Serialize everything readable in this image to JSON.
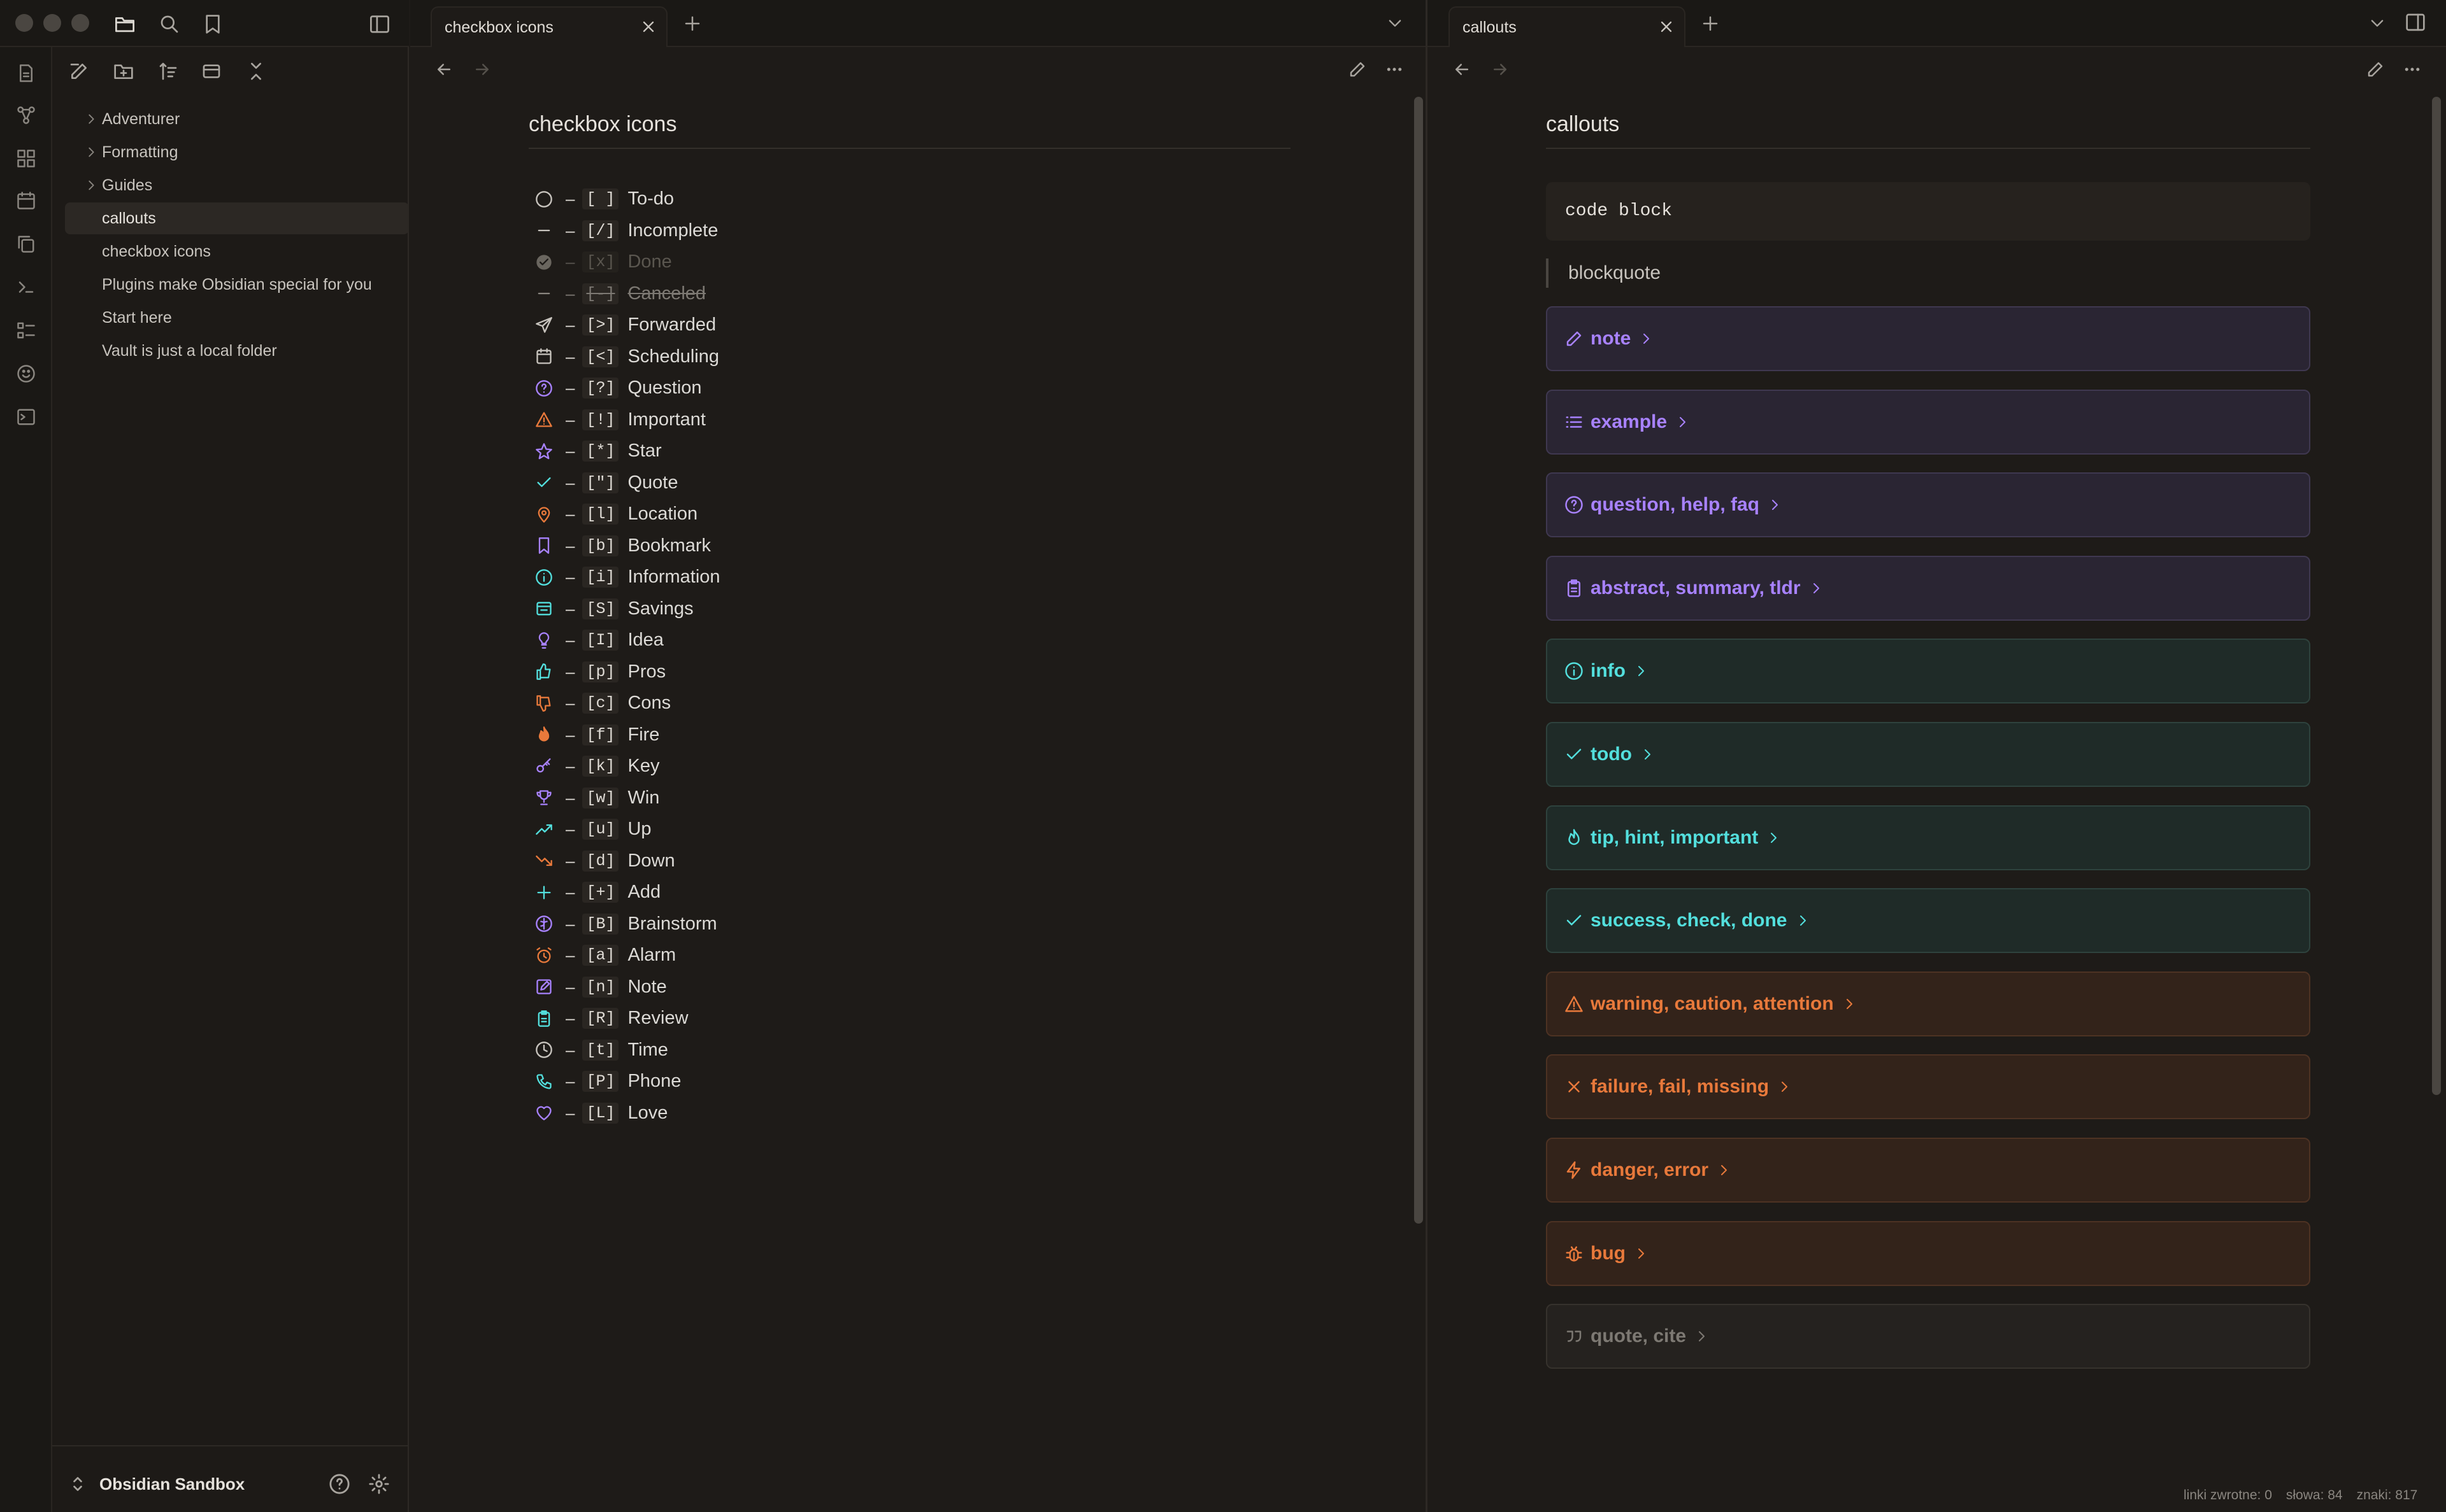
{
  "sidebar": {
    "vault_name": "Obsidian Sandbox",
    "tree": [
      {
        "label": "Adventurer",
        "folder": true
      },
      {
        "label": "Formatting",
        "folder": true
      },
      {
        "label": "Guides",
        "folder": true
      },
      {
        "label": "callouts",
        "folder": false,
        "active": true
      },
      {
        "label": "checkbox icons",
        "folder": false
      },
      {
        "label": "Plugins make Obsidian special for you",
        "folder": false
      },
      {
        "label": "Start here",
        "folder": false
      },
      {
        "label": "Vault is just a local folder",
        "folder": false
      }
    ]
  },
  "left_pane": {
    "tab_title": "checkbox icons",
    "title": "checkbox icons",
    "items": [
      {
        "dash": "–",
        "mark": "[ ]",
        "label": "To-do",
        "icon": "circle-icon",
        "color": "#c8c4be"
      },
      {
        "dash": "–",
        "mark": "[/]",
        "label": "Incomplete",
        "icon": "dash-icon",
        "color": "#c8c4be"
      },
      {
        "dash": "–",
        "mark": "[x]",
        "label": "Done",
        "icon": "check-circle-icon",
        "color": "#6a665f"
      },
      {
        "dash": "–",
        "mark": "[-]",
        "label": "Canceled",
        "icon": "dash-icon",
        "color": "#8a8680"
      },
      {
        "dash": "–",
        "mark": "[>]",
        "label": "Forwarded",
        "icon": "send-icon",
        "color": "#c8c4be"
      },
      {
        "dash": "–",
        "mark": "[<]",
        "label": "Scheduling",
        "icon": "calendar-icon",
        "color": "#c8c4be"
      },
      {
        "dash": "–",
        "mark": "[?]",
        "label": "Question",
        "icon": "question-icon",
        "color": "#a882ff"
      },
      {
        "dash": "–",
        "mark": "[!]",
        "label": "Important",
        "icon": "warning-icon",
        "color": "#e8793b"
      },
      {
        "dash": "–",
        "mark": "[*]",
        "label": "Star",
        "icon": "star-icon",
        "color": "#a882ff"
      },
      {
        "dash": "–",
        "mark": "[\"]",
        "label": "Quote",
        "icon": "check-icon",
        "color": "#53dfdd"
      },
      {
        "dash": "–",
        "mark": "[l]",
        "label": "Location",
        "icon": "pin-icon",
        "color": "#e8793b"
      },
      {
        "dash": "–",
        "mark": "[b]",
        "label": "Bookmark",
        "icon": "bookmark-icon",
        "color": "#a882ff"
      },
      {
        "dash": "–",
        "mark": "[i]",
        "label": "Information",
        "icon": "info-icon",
        "color": "#53dfdd"
      },
      {
        "dash": "–",
        "mark": "[S]",
        "label": "Savings",
        "icon": "savings-icon",
        "color": "#53dfdd"
      },
      {
        "dash": "–",
        "mark": "[I]",
        "label": "Idea",
        "icon": "bulb-icon",
        "color": "#a882ff"
      },
      {
        "dash": "–",
        "mark": "[p]",
        "label": "Pros",
        "icon": "thumbs-up-icon",
        "color": "#53dfdd"
      },
      {
        "dash": "–",
        "mark": "[c]",
        "label": "Cons",
        "icon": "thumbs-down-icon",
        "color": "#e8793b"
      },
      {
        "dash": "–",
        "mark": "[f]",
        "label": "Fire",
        "icon": "fire-icon",
        "color": "#e8793b"
      },
      {
        "dash": "–",
        "mark": "[k]",
        "label": "Key",
        "icon": "key-icon",
        "color": "#a882ff"
      },
      {
        "dash": "–",
        "mark": "[w]",
        "label": "Win",
        "icon": "trophy-icon",
        "color": "#a882ff"
      },
      {
        "dash": "–",
        "mark": "[u]",
        "label": "Up",
        "icon": "trend-up-icon",
        "color": "#53dfdd"
      },
      {
        "dash": "–",
        "mark": "[d]",
        "label": "Down",
        "icon": "trend-down-icon",
        "color": "#e8793b"
      },
      {
        "dash": "–",
        "mark": "[+]",
        "label": "Add",
        "icon": "plus-icon",
        "color": "#53dfdd"
      },
      {
        "dash": "–",
        "mark": "[B]",
        "label": "Brainstorm",
        "icon": "brain-icon",
        "color": "#a882ff"
      },
      {
        "dash": "–",
        "mark": "[a]",
        "label": "Alarm",
        "icon": "alarm-icon",
        "color": "#e8793b"
      },
      {
        "dash": "–",
        "mark": "[n]",
        "label": "Note",
        "icon": "edit-icon",
        "color": "#a882ff"
      },
      {
        "dash": "–",
        "mark": "[R]",
        "label": "Review",
        "icon": "clipboard-icon",
        "color": "#53dfdd"
      },
      {
        "dash": "–",
        "mark": "[t]",
        "label": "Time",
        "icon": "clock-icon",
        "color": "#c8c4be"
      },
      {
        "dash": "–",
        "mark": "[P]",
        "label": "Phone",
        "icon": "phone-icon",
        "color": "#53dfdd"
      },
      {
        "dash": "–",
        "mark": "[L]",
        "label": "Love",
        "icon": "heart-icon",
        "color": "#a882ff"
      }
    ]
  },
  "right_pane": {
    "tab_title": "callouts",
    "title": "callouts",
    "code_block": "code block",
    "blockquote": "blockquote",
    "callouts": [
      {
        "label": "note",
        "icon": "pencil-icon",
        "color": "#a882ff",
        "bg": "#2a2533",
        "border": "#3f3850"
      },
      {
        "label": "example",
        "icon": "list-icon",
        "color": "#a882ff",
        "bg": "#2a2533",
        "border": "#3f3850"
      },
      {
        "label": "question, help, faq",
        "icon": "help-circle-icon",
        "color": "#a882ff",
        "bg": "#2a2533",
        "border": "#3f3850"
      },
      {
        "label": "abstract, summary, tldr",
        "icon": "clipboard-icon",
        "color": "#a882ff",
        "bg": "#2a2533",
        "border": "#3f3850"
      },
      {
        "label": "info",
        "icon": "info-icon",
        "color": "#53dfdd",
        "bg": "#1f2b28",
        "border": "#2e423d"
      },
      {
        "label": "todo",
        "icon": "check-icon",
        "color": "#53dfdd",
        "bg": "#1f2b28",
        "border": "#2e423d"
      },
      {
        "label": "tip, hint, important",
        "icon": "flame-icon",
        "color": "#53dfdd",
        "bg": "#1f2b28",
        "border": "#2e423d"
      },
      {
        "label": "success, check, done",
        "icon": "check-icon",
        "color": "#53dfdd",
        "bg": "#1f2b28",
        "border": "#2e423d"
      },
      {
        "label": "warning, caution, attention",
        "icon": "warning-icon",
        "color": "#e8793b",
        "bg": "#33231a",
        "border": "#4d3223"
      },
      {
        "label": "failure, fail, missing",
        "icon": "x-icon",
        "color": "#e8793b",
        "bg": "#33231a",
        "border": "#4d3223"
      },
      {
        "label": "danger, error",
        "icon": "zap-icon",
        "color": "#e8793b",
        "bg": "#33231a",
        "border": "#4d3223"
      },
      {
        "label": "bug",
        "icon": "bug-icon",
        "color": "#e8793b",
        "bg": "#33231a",
        "border": "#4d3223"
      },
      {
        "label": "quote, cite",
        "icon": "quote-icon",
        "color": "#7d7973",
        "bg": "#25221f",
        "border": "#36322d"
      }
    ]
  },
  "status_bar": {
    "backlinks": "linki zwrotne: 0",
    "words": "słowa: 84",
    "chars": "znaki: 817"
  }
}
